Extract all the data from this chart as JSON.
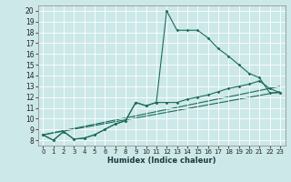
{
  "xlabel": "Humidex (Indice chaleur)",
  "background_color": "#cce8e8",
  "line_color": "#1a6b5a",
  "xlim": [
    -0.5,
    23.5
  ],
  "ylim": [
    7.5,
    20.5
  ],
  "yticks": [
    8,
    9,
    10,
    11,
    12,
    13,
    14,
    15,
    16,
    17,
    18,
    19,
    20
  ],
  "xticks": [
    0,
    1,
    2,
    3,
    4,
    5,
    6,
    7,
    8,
    9,
    10,
    11,
    12,
    13,
    14,
    15,
    16,
    17,
    18,
    19,
    20,
    21,
    22,
    23
  ],
  "curve1_x": [
    0,
    1,
    2,
    3,
    4,
    5,
    6,
    7,
    8,
    9,
    10,
    11,
    12,
    13,
    14,
    15,
    16,
    17,
    18,
    19,
    20,
    21,
    22,
    23
  ],
  "curve1_y": [
    8.5,
    8.0,
    8.8,
    8.1,
    8.2,
    8.5,
    9.0,
    9.5,
    9.8,
    11.5,
    11.2,
    11.5,
    20.0,
    18.2,
    18.2,
    18.2,
    17.5,
    16.5,
    15.8,
    15.0,
    14.2,
    13.8,
    12.4,
    12.4
  ],
  "curve2_x": [
    0,
    1,
    2,
    3,
    4,
    5,
    6,
    7,
    8,
    9,
    10,
    11,
    12,
    13,
    14,
    15,
    16,
    17,
    18,
    19,
    20,
    21,
    22,
    23
  ],
  "curve2_y": [
    8.5,
    8.0,
    8.8,
    8.1,
    8.2,
    8.5,
    9.0,
    9.5,
    9.8,
    11.5,
    11.2,
    11.5,
    11.5,
    11.5,
    11.8,
    12.0,
    12.2,
    12.5,
    12.8,
    13.0,
    13.2,
    13.5,
    12.8,
    12.4
  ],
  "line1": [
    [
      0,
      23
    ],
    [
      8.5,
      13.0
    ]
  ],
  "line2": [
    [
      0,
      23
    ],
    [
      8.5,
      12.5
    ]
  ]
}
